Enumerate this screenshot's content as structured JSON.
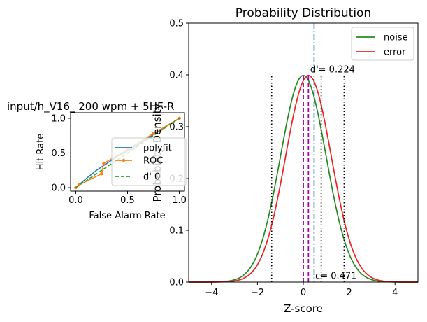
{
  "colors": {
    "roc_polyfit": "#1f77b4",
    "roc_curve": "#ff7f0e",
    "roc_dprime": "#2ca02c",
    "noise": "#228b22",
    "error": "#ee2222",
    "criterion_markers": "#000000",
    "peak_markers": "#aa00aa",
    "dprime_line": "#1f77b4"
  },
  "chart_data": [
    {
      "type": "line",
      "title": "input/h_V16_ 200 wpm + 5HF-R",
      "xlabel": "False-Alarm Rate",
      "ylabel": "Hit Rate",
      "xlim": [
        -0.05,
        1.05
      ],
      "ylim": [
        -0.05,
        1.08
      ],
      "xticks": [
        "0.0",
        "0.5",
        "1.0"
      ],
      "yticks": [
        "0.0",
        "0.5",
        "1.0"
      ],
      "legend": {
        "placement": "lower-right",
        "entries": [
          "polyfit",
          "ROC",
          "d' 0"
        ]
      },
      "series": [
        {
          "name": "polyfit",
          "style": "solid",
          "x": [
            0,
            0.05,
            0.1,
            0.15,
            0.2,
            0.25,
            0.3,
            0.35,
            0.4,
            0.5,
            0.6,
            0.7,
            0.8,
            0.9,
            1.0
          ],
          "y": [
            0,
            0.065,
            0.13,
            0.19,
            0.25,
            0.3,
            0.35,
            0.4,
            0.45,
            0.53,
            0.62,
            0.72,
            0.81,
            0.91,
            1.0
          ]
        },
        {
          "name": "ROC",
          "style": "solid-markers",
          "x": [
            0,
            0.03,
            0.25,
            0.27,
            0.5,
            0.75,
            1.0
          ],
          "y": [
            0,
            0.04,
            0.2,
            0.35,
            0.55,
            0.78,
            1.0
          ]
        },
        {
          "name": "d' 0",
          "style": "dashed",
          "x": [
            0,
            1
          ],
          "y": [
            0,
            1
          ]
        }
      ]
    },
    {
      "type": "line",
      "title": "Probability Distribution",
      "xlabel": "Z-score",
      "ylabel": "Probability Density",
      "xlim": [
        -5,
        5
      ],
      "ylim": [
        0,
        0.5
      ],
      "xticks": [
        "−4",
        "−2",
        "0",
        "2",
        "4"
      ],
      "yticks": [
        "0.0",
        "0.1",
        "0.2",
        "0.3",
        "0.4",
        "0.5"
      ],
      "legend": {
        "placement": "top-right",
        "entries": [
          "noise",
          "error"
        ]
      },
      "series": [
        {
          "name": "noise",
          "distribution": "normal",
          "mean": 0.0,
          "sd": 1.0
        },
        {
          "name": "error",
          "distribution": "normal",
          "mean": 0.224,
          "sd": 1.0
        }
      ],
      "criterion_lines_x": [
        -1.38,
        0.0,
        0.78,
        1.78
      ],
      "criterion_lines_ymax": 0.4,
      "peak_lines_x": [
        0.0,
        0.224
      ],
      "dprime_line_x": 0.471,
      "annotations": [
        {
          "text": "d'= 0.224",
          "x": 0.3,
          "y": 0.405
        },
        {
          "text": "c= 0.471",
          "x": 0.52,
          "y": 0.006
        }
      ]
    }
  ]
}
